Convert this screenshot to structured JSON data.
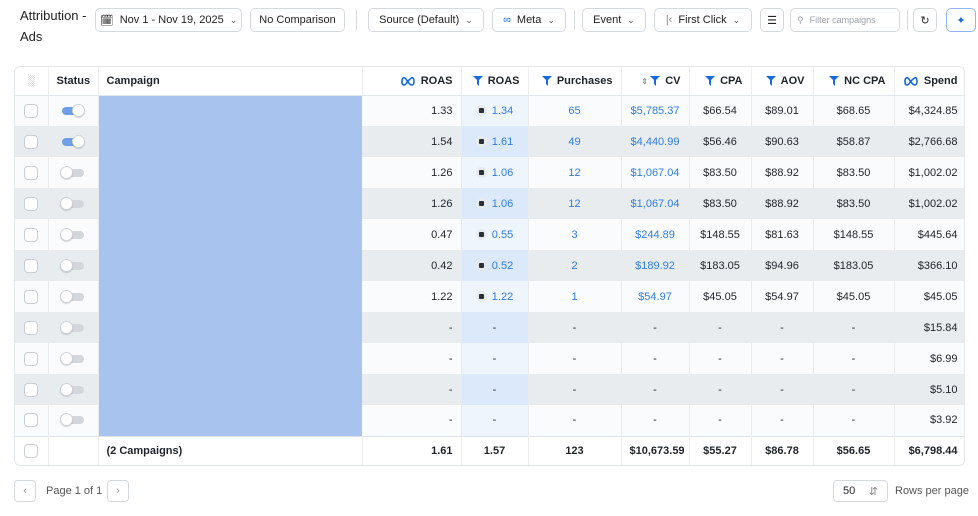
{
  "header": {
    "title": "Attribution - Ads",
    "date_range": "Nov 1 - Nov 19, 2025",
    "comparison": "No Comparison",
    "source": "Source (Default)",
    "platform": "Meta",
    "event": "Event",
    "model": "First Click",
    "search_placeholder": "Filter campaigns"
  },
  "table": {
    "columns": [
      {
        "label": "Status"
      },
      {
        "label": "Campaign"
      },
      {
        "label": "ROAS",
        "icon": "meta"
      },
      {
        "label": "ROAS",
        "icon": "pixel",
        "link": true
      },
      {
        "label": "Purchases",
        "icon": "pixel",
        "link": true
      },
      {
        "label": "CV",
        "icon": "pixel",
        "link": true,
        "sorted": true
      },
      {
        "label": "CPA",
        "icon": "pixel"
      },
      {
        "label": "AOV",
        "icon": "pixel"
      },
      {
        "label": "NC CPA",
        "icon": "pixel"
      },
      {
        "label": "Spend",
        "icon": "meta"
      }
    ],
    "rows": [
      {
        "status": true,
        "values": [
          "1.33",
          "1.34",
          "65",
          "$5,785.37",
          "$66.54",
          "$89.01",
          "$68.65",
          "$4,324.85"
        ]
      },
      {
        "status": true,
        "values": [
          "1.54",
          "1.61",
          "49",
          "$4,440.99",
          "$56.46",
          "$90.63",
          "$58.87",
          "$2,766.68"
        ]
      },
      {
        "status": false,
        "values": [
          "1.26",
          "1.06",
          "12",
          "$1,067.04",
          "$83.50",
          "$88.92",
          "$83.50",
          "$1,002.02"
        ]
      },
      {
        "status": false,
        "values": [
          "1.26",
          "1.06",
          "12",
          "$1,067.04",
          "$83.50",
          "$88.92",
          "$83.50",
          "$1,002.02"
        ]
      },
      {
        "status": false,
        "values": [
          "0.47",
          "0.55",
          "3",
          "$244.89",
          "$148.55",
          "$81.63",
          "$148.55",
          "$445.64"
        ]
      },
      {
        "status": false,
        "values": [
          "0.42",
          "0.52",
          "2",
          "$189.92",
          "$183.05",
          "$94.96",
          "$183.05",
          "$366.10"
        ]
      },
      {
        "status": false,
        "values": [
          "1.22",
          "1.22",
          "1",
          "$54.97",
          "$45.05",
          "$54.97",
          "$45.05",
          "$45.05"
        ]
      },
      {
        "status": false,
        "values": [
          "-",
          "-",
          "-",
          "-",
          "-",
          "-",
          "-",
          "$15.84"
        ]
      },
      {
        "status": false,
        "values": [
          "-",
          "-",
          "-",
          "-",
          "-",
          "-",
          "-",
          "$6.99"
        ]
      },
      {
        "status": false,
        "values": [
          "-",
          "-",
          "-",
          "-",
          "-",
          "-",
          "-",
          "$5.10"
        ]
      },
      {
        "status": false,
        "values": [
          "-",
          "-",
          "-",
          "-",
          "-",
          "-",
          "-",
          "$3.92"
        ]
      }
    ],
    "total": {
      "label": "(2 Campaigns)",
      "values": [
        "1.61",
        "1.57",
        "123",
        "$10,673.59",
        "$55.27",
        "$86.78",
        "$56.65",
        "$6,798.44"
      ]
    }
  },
  "footer": {
    "page": "Page 1 of 1",
    "rows_per_page_value": "50",
    "rows_per_page_label": "Rows per page"
  }
}
